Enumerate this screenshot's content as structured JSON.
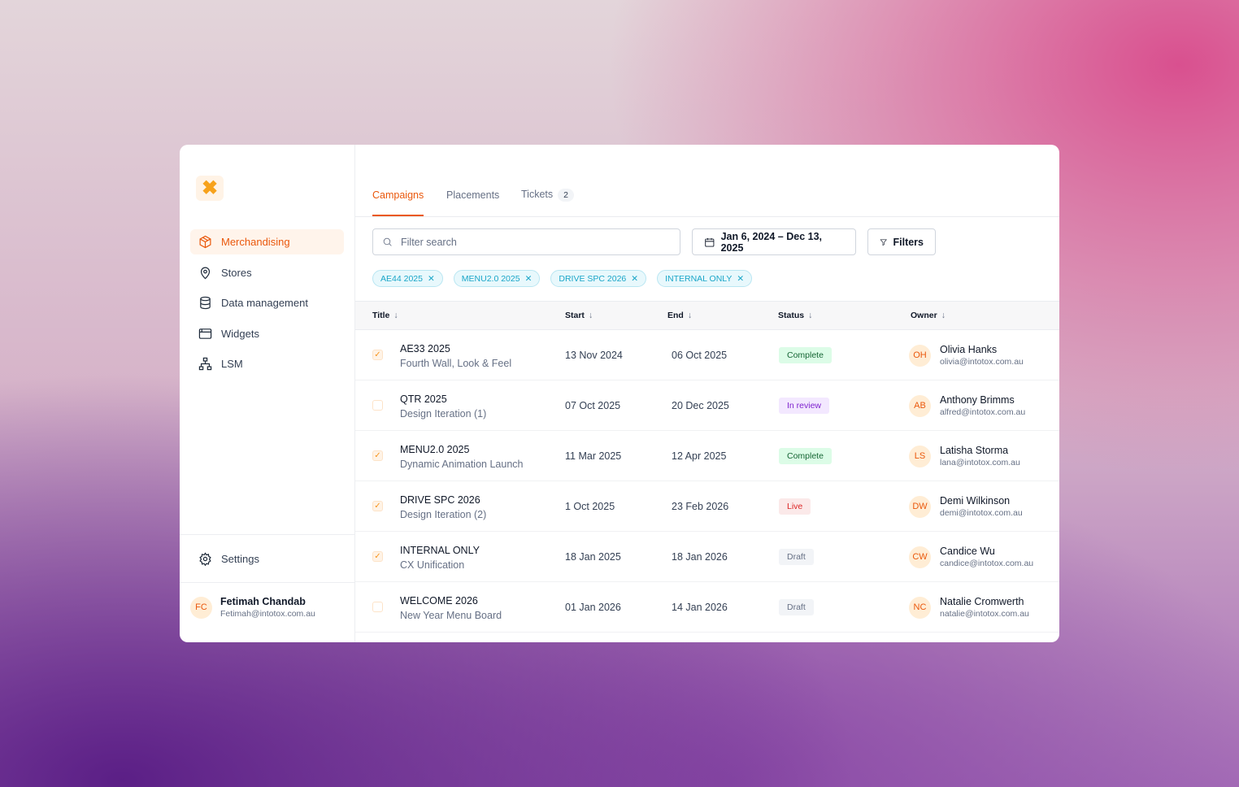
{
  "sidebar": {
    "logo": "✖",
    "items": [
      {
        "label": "Merchandising",
        "icon": "box"
      },
      {
        "label": "Stores",
        "icon": "pin"
      },
      {
        "label": "Data management",
        "icon": "database"
      },
      {
        "label": "Widgets",
        "icon": "browser"
      },
      {
        "label": "LSM",
        "icon": "sitemap"
      }
    ],
    "settings": "Settings",
    "user": {
      "initials": "FC",
      "name": "Fetimah Chandab",
      "email": "Fetimah@intotox.com.au"
    }
  },
  "tabs": {
    "campaigns": "Campaigns",
    "placements": "Placements",
    "tickets": "Tickets",
    "tickets_count": "2"
  },
  "toolbar": {
    "search_placeholder": "Filter search",
    "date_range": "Jan 6, 2024 – Dec 13, 2025",
    "filters": "Filters"
  },
  "chips": [
    "AE44 2025",
    "MENU2.0 2025",
    "DRIVE SPC 2026",
    "INTERNAL ONLY"
  ],
  "columns": {
    "title": "Title",
    "start": "Start",
    "end": "End",
    "status": "Status",
    "owner": "Owner"
  },
  "status_colors": {
    "Complete": [
      "#dcfce7",
      "#166534"
    ],
    "In review": [
      "#f3e8ff",
      "#7e22ce"
    ],
    "Live": [
      "#fbe9e9",
      "#dc2626"
    ],
    "Draft": [
      "#f2f4f7",
      "#667085"
    ]
  },
  "rows": [
    {
      "checked": true,
      "title": "AE33 2025",
      "subtitle": "Fourth Wall, Look & Feel",
      "start": "13 Nov 2024",
      "end": "06 Oct 2025",
      "status": "Complete",
      "initials": "OH",
      "owner": "Olivia Hanks",
      "email": "olivia@intotox.com.au"
    },
    {
      "checked": false,
      "title": "QTR 2025",
      "subtitle": "Design Iteration (1)",
      "start": "07 Oct 2025",
      "end": "20 Dec 2025",
      "status": "In review",
      "initials": "AB",
      "owner": "Anthony Brimms",
      "email": "alfred@intotox.com.au"
    },
    {
      "checked": true,
      "title": "MENU2.0 2025",
      "subtitle": "Dynamic Animation Launch",
      "start": "11 Mar 2025",
      "end": "12 Apr 2025",
      "status": "Complete",
      "initials": "LS",
      "owner": "Latisha Storma",
      "email": "lana@intotox.com.au"
    },
    {
      "checked": true,
      "title": "DRIVE SPC 2026",
      "subtitle": "Design Iteration (2)",
      "start": "1 Oct 2025",
      "end": "23 Feb 2026",
      "status": "Live",
      "initials": "DW",
      "owner": "Demi Wilkinson",
      "email": "demi@intotox.com.au"
    },
    {
      "checked": true,
      "title": "INTERNAL ONLY",
      "subtitle": "CX Unification",
      "start": "18 Jan 2025",
      "end": "18 Jan 2026",
      "status": "Draft",
      "initials": "CW",
      "owner": "Candice Wu",
      "email": "candice@intotox.com.au"
    },
    {
      "checked": false,
      "title": "WELCOME 2026",
      "subtitle": "New Year Menu Board",
      "start": "01 Jan 2026",
      "end": "14 Jan 2026",
      "status": "Draft",
      "initials": "NC",
      "owner": "Natalie Cromwerth",
      "email": "natalie@intotox.com.au"
    }
  ]
}
